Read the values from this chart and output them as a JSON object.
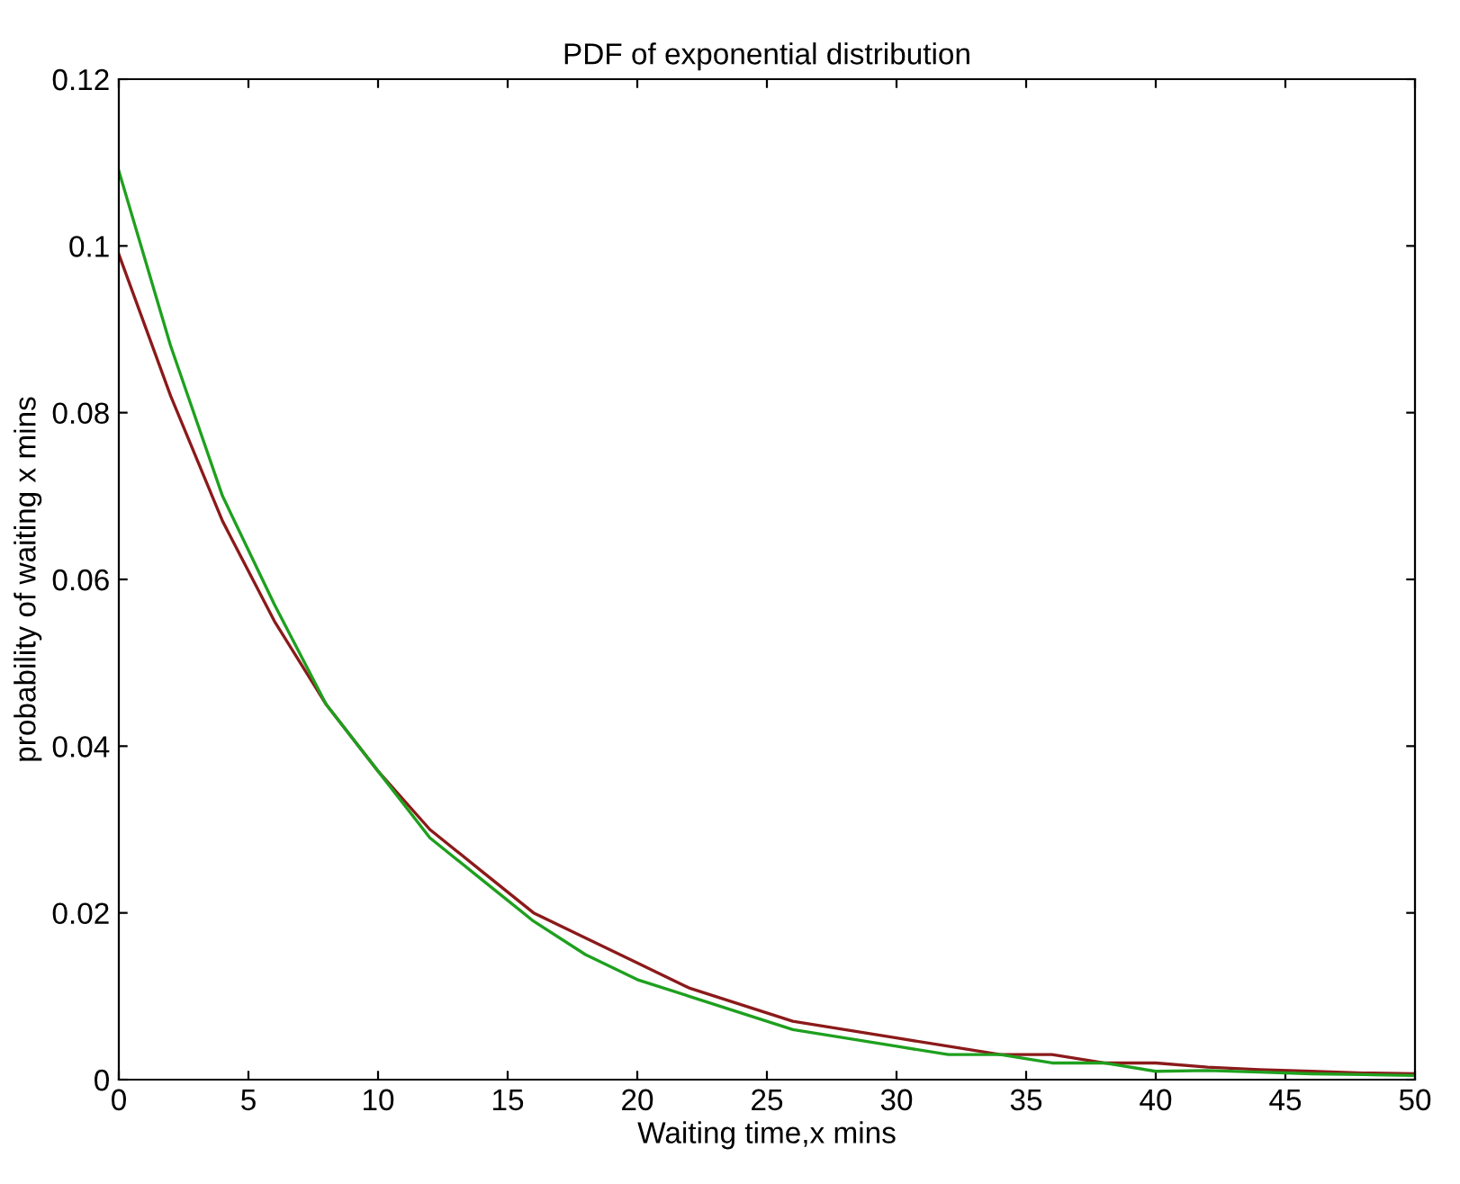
{
  "chart_data": {
    "type": "line",
    "title": "PDF of exponential distribution",
    "xlabel": "Waiting time,x mins",
    "ylabel": "probability of waiting x mins",
    "x": [
      0,
      2,
      4,
      6,
      8,
      10,
      12,
      14,
      16,
      18,
      20,
      22,
      24,
      26,
      28,
      30,
      32,
      34,
      36,
      38,
      40,
      42,
      44,
      46,
      48,
      50
    ],
    "series": [
      {
        "color": "#8b1a1a",
        "values": [
          0.099,
          0.082,
          0.067,
          0.055,
          0.045,
          0.037,
          0.03,
          0.025,
          0.02,
          0.017,
          0.014,
          0.011,
          0.009,
          0.007,
          0.006,
          0.005,
          0.004,
          0.003,
          0.003,
          0.002,
          0.002,
          0.0015,
          0.0012,
          0.001,
          0.0008,
          0.0007
        ]
      },
      {
        "color": "#1ea01e",
        "values": [
          0.109,
          0.088,
          0.07,
          0.057,
          0.045,
          0.037,
          0.029,
          0.024,
          0.019,
          0.015,
          0.012,
          0.01,
          0.008,
          0.006,
          0.005,
          0.004,
          0.003,
          0.003,
          0.002,
          0.002,
          0.001,
          0.0011,
          0.0009,
          0.0007,
          0.0006,
          0.0005
        ]
      }
    ],
    "xlim": [
      0,
      50
    ],
    "xticks": [
      0,
      5,
      10,
      15,
      20,
      25,
      30,
      35,
      40,
      45,
      50
    ],
    "ylim": [
      0,
      0.12
    ],
    "yticks": [
      0,
      0.02,
      0.04,
      0.06,
      0.08,
      0.1,
      0.12
    ],
    "grid": false,
    "legend": false,
    "marker": "none",
    "line_style": "solid"
  }
}
